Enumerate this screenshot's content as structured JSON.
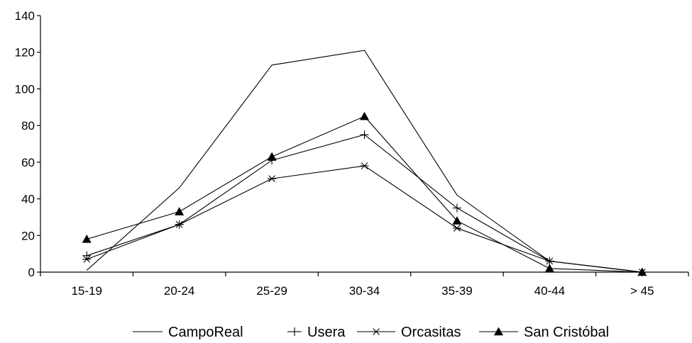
{
  "chart_data": {
    "type": "line",
    "title": "",
    "xlabel": "",
    "ylabel": "",
    "categories": [
      "15-19",
      "20-24",
      "25-29",
      "30-34",
      "35-39",
      "40-44",
      "> 45"
    ],
    "ylim": [
      0,
      140
    ],
    "yticks": [
      0,
      20,
      40,
      60,
      80,
      100,
      120,
      140
    ],
    "grid": false,
    "legend_position": "bottom",
    "series": [
      {
        "name": "CampoReal",
        "marker": "none",
        "values": [
          1,
          46,
          113,
          121,
          42,
          6,
          0
        ]
      },
      {
        "name": "Usera",
        "marker": "plus",
        "values": [
          9,
          26,
          61,
          75,
          35,
          6,
          0
        ]
      },
      {
        "name": "Orcasitas",
        "marker": "asterisk",
        "values": [
          7,
          26,
          51,
          58,
          24,
          6,
          0
        ]
      },
      {
        "name": "San Cristóbal",
        "marker": "triangle",
        "values": [
          18,
          33,
          63,
          85,
          28,
          2,
          0
        ]
      }
    ]
  }
}
